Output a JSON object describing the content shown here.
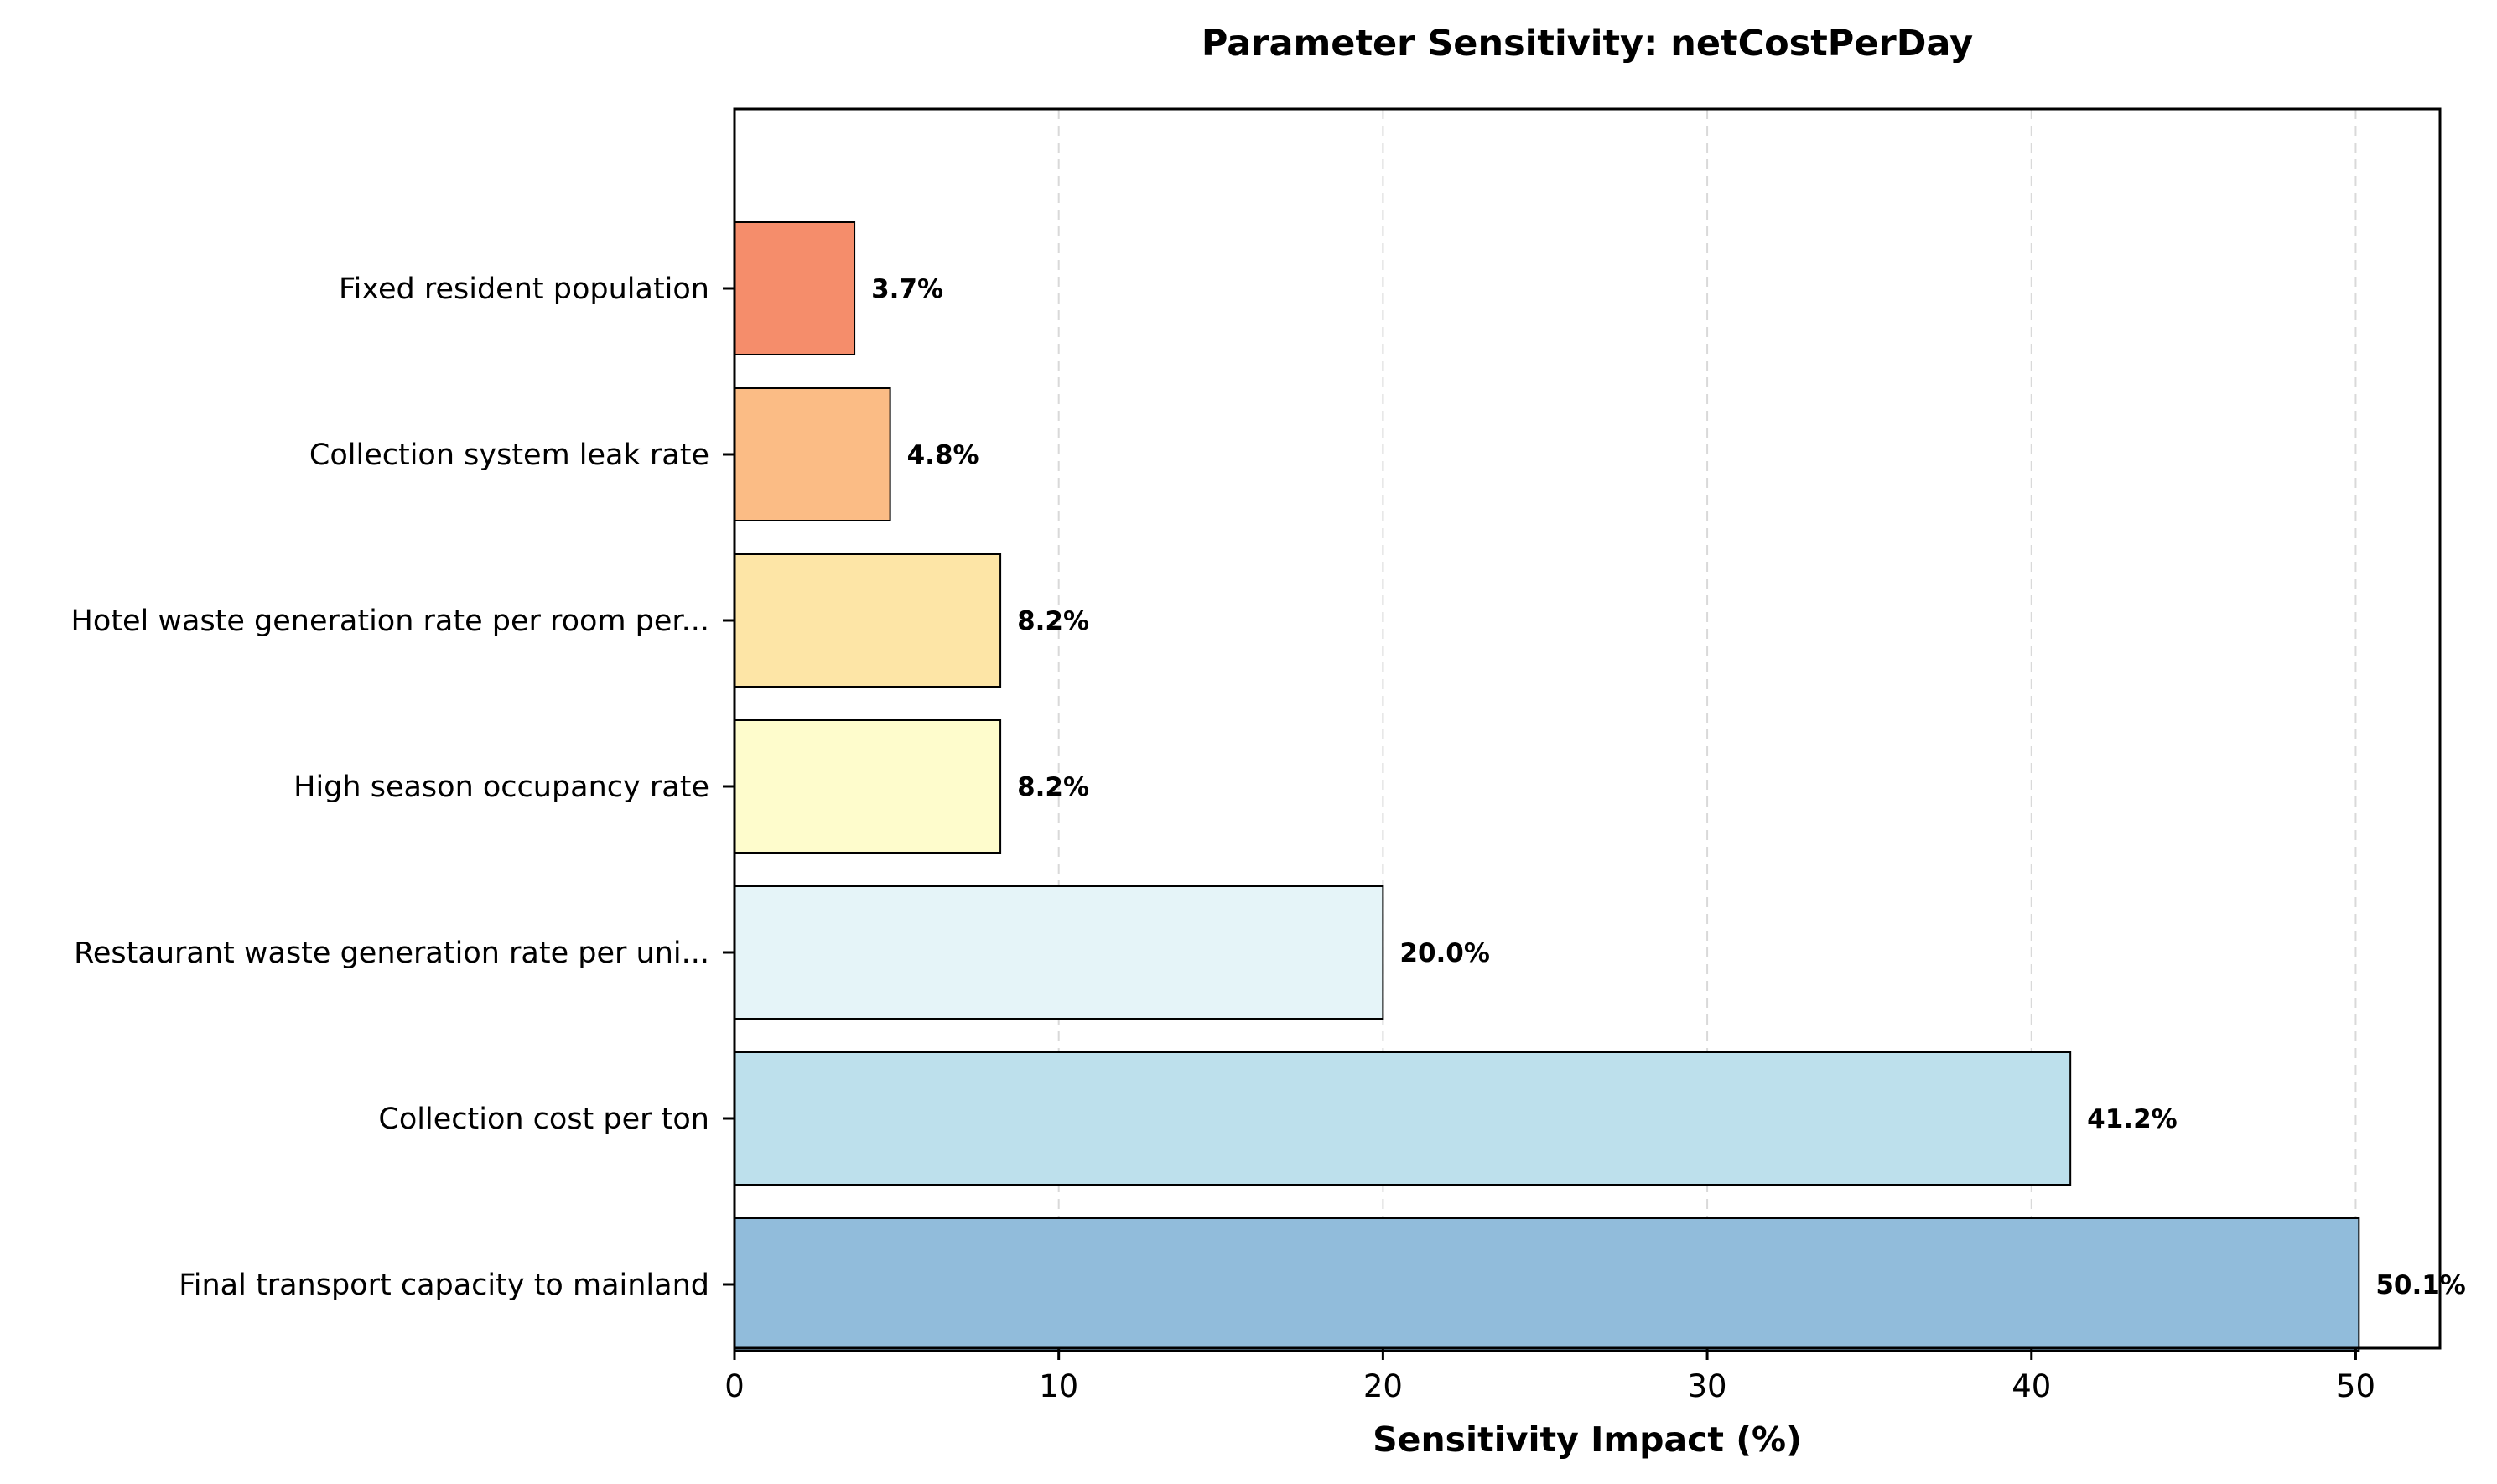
{
  "chart_data": {
    "type": "bar",
    "orientation": "horizontal",
    "title": "Parameter Sensitivity: netCostPerDay",
    "xlabel": "Sensitivity Impact (%)",
    "ylabel": "",
    "xlim": [
      0,
      52.6
    ],
    "xticks": [
      0,
      10,
      20,
      30,
      40,
      50
    ],
    "grid": "x-dashed",
    "categories": [
      "Final transport capacity to mainland",
      "Collection cost per ton",
      "Restaurant waste generation rate per uni...",
      "High season occupancy rate",
      "Hotel waste generation rate per room per...",
      "Collection system leak rate",
      "Fixed resident population"
    ],
    "values": [
      50.1,
      41.2,
      20.0,
      8.2,
      8.2,
      4.8,
      3.7
    ],
    "value_labels": [
      "50.1%",
      "41.2%",
      "20.0%",
      "8.2%",
      "8.2%",
      "4.8%",
      "3.7%"
    ],
    "colors": [
      "#91bcdb",
      "#bde0ec",
      "#e5f4f8",
      "#fefccc",
      "#fde5a6",
      "#fbbc85",
      "#f58d6b"
    ]
  }
}
